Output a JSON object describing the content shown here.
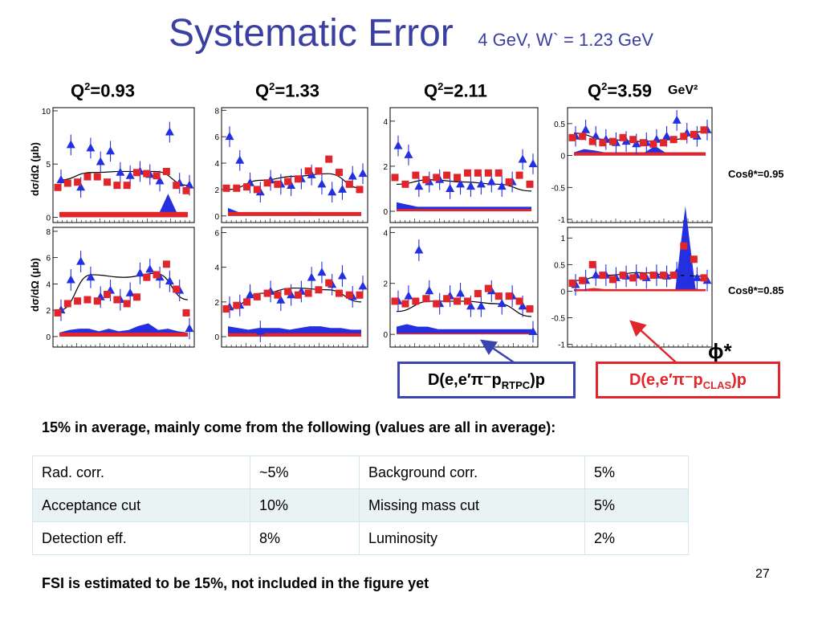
{
  "slide": {
    "title": "Systematic Error",
    "subtitle": "4 GeV, W` = 1.23 GeV",
    "q2_labels": [
      {
        "base": "Q",
        "sup": "2",
        "rest": "=0.93"
      },
      {
        "base": "Q",
        "sup": "2",
        "rest": "=1.33"
      },
      {
        "base": "Q",
        "sup": "2",
        "rest": "=2.11"
      },
      {
        "base": "Q",
        "sup": "2",
        "rest": "=3.59"
      }
    ],
    "q2_unit": "GeV²",
    "ylabel": "dσ/dΩ (μb)",
    "row_labels": [
      "Cosθ*=0.95",
      "Cosθ*=0.85"
    ],
    "phi_label": "ϕ*",
    "legend_rtpc": "D(e,e′π⁻pRTPC)p",
    "legend_clas": "D(e,e′π⁻pCLAS)p",
    "note_main": "15% in average, mainly come from the following (values are all in average):",
    "table": [
      [
        "Rad. corr.",
        "~5%",
        "Background corr.",
        "5%"
      ],
      [
        "Acceptance cut",
        "10%",
        "Missing mass cut",
        "5%"
      ],
      [
        "Detection eff.",
        "8%",
        "Luminosity",
        "2%"
      ]
    ],
    "note_fsi": "FSI is estimated to be 15%, not included in the figure yet",
    "page_number": "27",
    "colors": {
      "title": "#3b3fa0",
      "rtpc": "#2430e0",
      "clas": "#e1262b",
      "curve": "#000000"
    }
  },
  "chart_data": [
    {
      "type": "scatter",
      "row": 0,
      "col": 0,
      "ylim": [
        -0.5,
        10.3
      ],
      "yticks": [
        0,
        5,
        10
      ],
      "curve": [
        3.5,
        4.2,
        4.3,
        4.3,
        3.0
      ],
      "series": [
        {
          "name": "D(e,e′π⁻pRTPC)p",
          "marker": "triangle",
          "values": [
            3.5,
            6.8,
            2.8,
            6.5,
            5.2,
            6.2,
            4.2,
            3.9,
            4.3,
            4.0,
            3.4,
            8.0,
            3.2,
            3.0
          ]
        },
        {
          "name": "D(e,e′π⁻pCLAS)p",
          "marker": "square",
          "values": [
            2.8,
            3.2,
            3.3,
            3.8,
            3.8,
            3.3,
            3.0,
            3.0,
            4.2,
            4.1,
            3.9,
            4.3,
            3.0,
            2.5
          ]
        }
      ],
      "syst_rtpc": [
        0.2,
        0.4,
        0.3,
        0.4,
        0.2,
        0.5,
        0.2,
        0.2,
        0.4,
        0.2,
        0.2,
        2.2,
        0.2,
        0.1
      ],
      "syst_clas": [
        0.5,
        0.5,
        0.5,
        0.5,
        0.5,
        0.5,
        0.5,
        0.5,
        0.5,
        0.5,
        0.5,
        0.5,
        0.5,
        0.5
      ]
    },
    {
      "type": "scatter",
      "row": 0,
      "col": 1,
      "ylim": [
        -0.5,
        8.2
      ],
      "yticks": [
        0,
        2,
        4,
        6,
        8
      ],
      "curve": [
        2.0,
        2.7,
        3.0,
        3.2,
        2.1
      ],
      "series": [
        {
          "name": "D(e,e′π⁻pRTPC)p",
          "marker": "triangle",
          "values": [
            6.0,
            4.2,
            2.5,
            1.8,
            2.7,
            2.4,
            2.3,
            2.8,
            3.1,
            2.4,
            1.8,
            2.0,
            3.0,
            3.2
          ]
        },
        {
          "name": "D(e,e′π⁻pCLAS)p",
          "marker": "square",
          "values": [
            2.1,
            2.1,
            2.2,
            2.0,
            2.5,
            2.4,
            2.6,
            2.8,
            3.4,
            3.4,
            4.3,
            3.3,
            2.4,
            2.0
          ]
        }
      ],
      "syst_rtpc": [
        0.6,
        0.3,
        0.2,
        0.2,
        0.3,
        0.2,
        0.2,
        0.3,
        0.3,
        0.2,
        0.2,
        0.2,
        0.2,
        0.2
      ],
      "syst_clas": [
        0.3,
        0.3,
        0.3,
        0.3,
        0.3,
        0.3,
        0.3,
        0.3,
        0.3,
        0.3,
        0.3,
        0.3,
        0.3,
        0.3
      ]
    },
    {
      "type": "scatter",
      "row": 0,
      "col": 2,
      "ylim": [
        -0.5,
        4.6
      ],
      "yticks": [
        0,
        2,
        4
      ],
      "curve": [
        1.2,
        1.4,
        1.3,
        1.2,
        0.9
      ],
      "series": [
        {
          "name": "D(e,e′π⁻pRTPC)p",
          "marker": "triangle",
          "values": [
            2.9,
            2.5,
            1.1,
            1.3,
            1.4,
            1.0,
            1.2,
            1.1,
            1.2,
            1.3,
            1.1,
            1.3,
            2.3,
            2.1
          ]
        },
        {
          "name": "D(e,e′π⁻pCLAS)p",
          "marker": "square",
          "values": [
            1.5,
            1.2,
            1.6,
            1.4,
            1.5,
            1.6,
            1.5,
            1.7,
            1.7,
            1.7,
            1.7,
            1.3,
            1.6,
            1.2
          ]
        }
      ],
      "syst_rtpc": [
        0.4,
        0.3,
        0.2,
        0.2,
        0.2,
        0.2,
        0.2,
        0.2,
        0.2,
        0.2,
        0.2,
        0.2,
        0.2,
        0.2
      ],
      "syst_clas": [
        0.1,
        0.1,
        0.1,
        0.1,
        0.1,
        0.1,
        0.1,
        0.1,
        0.1,
        0.1,
        0.1,
        0.1,
        0.1,
        0.1
      ]
    },
    {
      "type": "scatter",
      "row": 0,
      "col": 3,
      "ylim": [
        -1.05,
        0.75
      ],
      "yticks": [
        0.5,
        0,
        -0.5,
        -1
      ],
      "curve": [
        0.35,
        0.25,
        0.22,
        0.25,
        0.38
      ],
      "series": [
        {
          "name": "D(e,e′π⁻pRTPC)p",
          "marker": "triangle",
          "values": [
            0.3,
            0.4,
            0.3,
            0.25,
            0.2,
            0.22,
            0.18,
            0.2,
            0.25,
            0.3,
            0.55,
            0.35,
            0.3,
            0.4
          ]
        },
        {
          "name": "D(e,e′π⁻pCLAS)p",
          "marker": "square",
          "values": [
            0.28,
            0.3,
            0.22,
            0.2,
            0.22,
            0.28,
            0.25,
            0.2,
            0.18,
            0.2,
            0.25,
            0.3,
            0.33,
            0.4
          ]
        }
      ],
      "syst_rtpc": [
        0.05,
        0.1,
        0.08,
        0.05,
        0.05,
        0.05,
        0.05,
        0.05,
        0.15,
        0.05,
        0.05,
        0.05,
        0.05,
        0.05
      ],
      "syst_clas": [
        0.05,
        0.05,
        0.05,
        0.05,
        0.05,
        0.05,
        0.05,
        0.05,
        0.05,
        0.05,
        0.05,
        0.05,
        0.05,
        0.05
      ]
    },
    {
      "type": "scatter",
      "row": 1,
      "col": 0,
      "ylim": [
        -0.8,
        8.3
      ],
      "yticks": [
        0,
        2,
        4,
        6,
        8
      ],
      "curve": [
        2.0,
        4.7,
        4.5,
        4.8,
        2.8
      ],
      "series": [
        {
          "name": "D(e,e′π⁻pRTPC)p",
          "marker": "triangle",
          "values": [
            2.0,
            4.3,
            5.7,
            4.5,
            3.0,
            3.5,
            2.8,
            3.3,
            4.8,
            5.1,
            4.5,
            4.2,
            3.5,
            0.6
          ]
        },
        {
          "name": "D(e,e′π⁻pCLAS)p",
          "marker": "square",
          "values": [
            1.8,
            2.5,
            2.7,
            2.8,
            2.7,
            3.2,
            2.8,
            2.5,
            3.0,
            4.5,
            4.7,
            5.5,
            3.6,
            1.8
          ]
        }
      ],
      "syst_rtpc": [
        0.3,
        0.5,
        0.6,
        0.6,
        0.4,
        0.6,
        0.4,
        0.5,
        0.8,
        1.0,
        0.5,
        0.6,
        0.4,
        0.3
      ],
      "syst_clas": [
        0.3,
        0.3,
        0.3,
        0.3,
        0.3,
        0.3,
        0.3,
        0.3,
        0.3,
        0.3,
        0.3,
        0.3,
        0.3,
        0.3
      ]
    },
    {
      "type": "scatter",
      "row": 1,
      "col": 1,
      "ylim": [
        -0.6,
        6.3
      ],
      "yticks": [
        0,
        2,
        4,
        6
      ],
      "curve": [
        1.6,
        2.5,
        2.8,
        2.7,
        2.0
      ],
      "series": [
        {
          "name": "D(e,e′π⁻pRTPC)p",
          "marker": "triangle",
          "values": [
            1.7,
            1.8,
            2.4,
            0.3,
            2.6,
            2.1,
            2.4,
            2.6,
            3.4,
            3.7,
            3.0,
            3.5,
            2.3,
            2.9
          ]
        },
        {
          "name": "D(e,e′π⁻pCLAS)p",
          "marker": "square",
          "values": [
            1.6,
            1.8,
            2.0,
            2.3,
            2.5,
            2.4,
            2.6,
            2.4,
            2.5,
            2.7,
            3.1,
            2.5,
            2.4,
            2.4
          ]
        }
      ],
      "syst_rtpc": [
        0.6,
        0.5,
        0.4,
        0.5,
        0.5,
        0.5,
        0.4,
        0.5,
        0.6,
        0.6,
        0.5,
        0.5,
        0.4,
        0.4
      ],
      "syst_clas": [
        0.2,
        0.2,
        0.2,
        0.2,
        0.2,
        0.2,
        0.2,
        0.2,
        0.2,
        0.2,
        0.2,
        0.2,
        0.2,
        0.2
      ]
    },
    {
      "type": "scatter",
      "row": 1,
      "col": 2,
      "ylim": [
        -0.5,
        4.2
      ],
      "yticks": [
        0,
        2,
        4
      ],
      "curve": [
        0.9,
        1.3,
        1.3,
        1.2,
        0.7
      ],
      "series": [
        {
          "name": "D(e,e′π⁻pRTPC)p",
          "marker": "triangle",
          "values": [
            1.3,
            1.5,
            3.3,
            1.7,
            1.2,
            1.5,
            1.6,
            1.1,
            1.1,
            1.7,
            1.2,
            1.5,
            1.1,
            0.1
          ]
        },
        {
          "name": "D(e,e′π⁻pCLAS)p",
          "marker": "square",
          "values": [
            1.3,
            1.2,
            1.3,
            1.4,
            1.2,
            1.4,
            1.3,
            1.3,
            1.6,
            1.8,
            1.5,
            1.5,
            1.3,
            1.0
          ]
        }
      ],
      "syst_rtpc": [
        0.3,
        0.4,
        0.3,
        0.3,
        0.2,
        0.2,
        0.2,
        0.2,
        0.2,
        0.2,
        0.2,
        0.2,
        0.2,
        0.2
      ],
      "syst_clas": [
        0.05,
        0.05,
        0.05,
        0.05,
        0.05,
        0.05,
        0.05,
        0.05,
        0.05,
        0.05,
        0.05,
        0.05,
        0.05,
        0.05
      ]
    },
    {
      "type": "scatter",
      "row": 1,
      "col": 3,
      "ylim": [
        -1.05,
        1.2
      ],
      "yticks": [
        1,
        0.5,
        0,
        -0.5,
        -1
      ],
      "curve": [
        0.2,
        0.3,
        0.35,
        0.3,
        0.28
      ],
      "series": [
        {
          "name": "D(e,e′π⁻pRTPC)p",
          "marker": "triangle",
          "values": [
            0.12,
            0.2,
            0.3,
            0.3,
            0.25,
            0.28,
            0.3,
            0.25,
            0.3,
            0.28,
            0.35,
            0.3,
            0.25,
            0.2
          ]
        },
        {
          "name": "D(e,e′π⁻pCLAS)p",
          "marker": "square",
          "values": [
            0.15,
            0.2,
            0.5,
            0.3,
            0.22,
            0.3,
            0.25,
            0.28,
            0.3,
            0.3,
            0.3,
            0.85,
            0.6,
            0.25
          ]
        }
      ],
      "syst_rtpc": [
        0.01,
        0.01,
        0.01,
        0.01,
        0.01,
        0.01,
        0.01,
        0.01,
        0.01,
        0.01,
        0.01,
        1.6,
        0.05,
        0.01
      ],
      "syst_clas": [
        0.04,
        0.04,
        0.06,
        0.04,
        0.04,
        0.04,
        0.04,
        0.04,
        0.04,
        0.04,
        0.04,
        0.04,
        0.04,
        0.04
      ]
    }
  ]
}
